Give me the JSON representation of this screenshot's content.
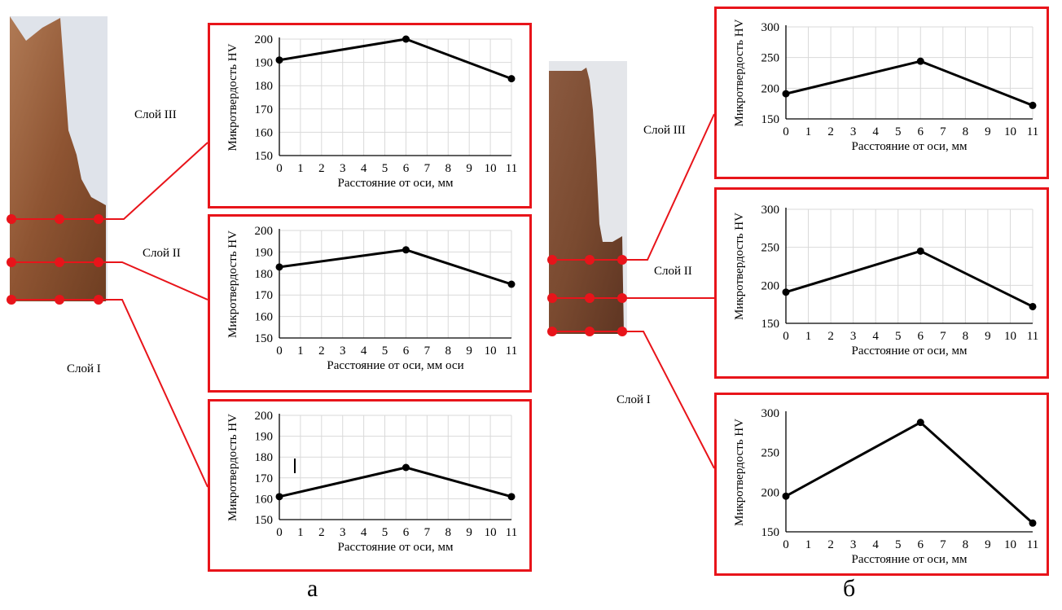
{
  "figure_labels": {
    "a": "а",
    "b": "б"
  },
  "layer_labels": {
    "a": [
      "Слой III",
      "Слой II",
      "Слой I"
    ],
    "b": [
      "Слой III",
      "Слой II",
      "Слой I"
    ]
  },
  "colors": {
    "panel_border": "#e8141a",
    "line": "#000000",
    "grid": "#d9d9d9"
  },
  "chart_data": [
    {
      "type": "line",
      "panel": "a-top",
      "layer": "Слой III",
      "x": [
        "0",
        "1",
        "2",
        "3",
        "4",
        "5",
        "6",
        "7",
        "8",
        "9",
        "10",
        "11"
      ],
      "series": [
        {
          "points": [
            [
              0,
              191
            ],
            [
              6,
              200
            ],
            [
              11,
              183
            ]
          ]
        }
      ],
      "ylim": [
        150,
        200
      ],
      "yticks": [
        150,
        160,
        170,
        180,
        190,
        200
      ],
      "xlabel": "Расстояние от оси, мм",
      "ylabel": "Микротвердость HV",
      "grid": true
    },
    {
      "type": "line",
      "panel": "a-middle",
      "layer": "Слой II",
      "x": [
        "0",
        "1",
        "2",
        "3",
        "4",
        "5",
        "6",
        "7",
        "8",
        "9",
        "10",
        "11"
      ],
      "series": [
        {
          "points": [
            [
              0,
              183
            ],
            [
              6,
              191
            ],
            [
              11,
              175
            ]
          ]
        }
      ],
      "ylim": [
        150,
        200
      ],
      "yticks": [
        150,
        160,
        170,
        180,
        190,
        200
      ],
      "xlabel": "Расстояние от оси, мм оси",
      "ylabel": "Микротвердость HV",
      "grid": true
    },
    {
      "type": "line",
      "panel": "a-bottom",
      "layer": "Слой I",
      "x": [
        "0",
        "1",
        "2",
        "3",
        "4",
        "5",
        "6",
        "7",
        "8",
        "9",
        "10",
        "11"
      ],
      "series": [
        {
          "points": [
            [
              0,
              161
            ],
            [
              6,
              175
            ],
            [
              11,
              161
            ]
          ]
        }
      ],
      "ylim": [
        150,
        200
      ],
      "yticks": [
        150,
        160,
        170,
        180,
        190,
        200
      ],
      "xlabel": "Расстояние от оси, мм",
      "ylabel": "Микротвердость HV",
      "grid": true
    },
    {
      "type": "line",
      "panel": "b-top",
      "layer": "Слой III",
      "x": [
        "0",
        "1",
        "2",
        "3",
        "4",
        "5",
        "6",
        "7",
        "8",
        "9",
        "10",
        "11"
      ],
      "series": [
        {
          "points": [
            [
              0,
              191
            ],
            [
              6,
              244
            ],
            [
              11,
              172
            ]
          ]
        }
      ],
      "ylim": [
        150,
        300
      ],
      "yticks": [
        150,
        200,
        250,
        300
      ],
      "xlabel": "Расстояние от оси, мм",
      "ylabel": "Микротвердость HV",
      "grid": true
    },
    {
      "type": "line",
      "panel": "b-middle",
      "layer": "Слой II",
      "x": [
        "0",
        "1",
        "2",
        "3",
        "4",
        "5",
        "6",
        "7",
        "8",
        "9",
        "10",
        "11"
      ],
      "series": [
        {
          "points": [
            [
              0,
              191
            ],
            [
              6,
              245
            ],
            [
              11,
              172
            ]
          ]
        }
      ],
      "ylim": [
        150,
        300
      ],
      "yticks": [
        150,
        200,
        250,
        300
      ],
      "xlabel": "Расстояние от оси, мм",
      "ylabel": "Микротвердость HV",
      "grid": true
    },
    {
      "type": "line",
      "panel": "b-bottom",
      "layer": "Слой I",
      "x": [
        "0",
        "1",
        "2",
        "3",
        "4",
        "5",
        "6",
        "7",
        "8",
        "9",
        "10",
        "11"
      ],
      "series": [
        {
          "points": [
            [
              0,
              195
            ],
            [
              6,
              288
            ],
            [
              11,
              161
            ]
          ]
        }
      ],
      "ylim": [
        150,
        300
      ],
      "yticks": [
        150,
        200,
        250,
        300
      ],
      "xlabel": "Расстояние от оси, мм",
      "ylabel": "Микротвердость HV",
      "grid": false
    }
  ]
}
